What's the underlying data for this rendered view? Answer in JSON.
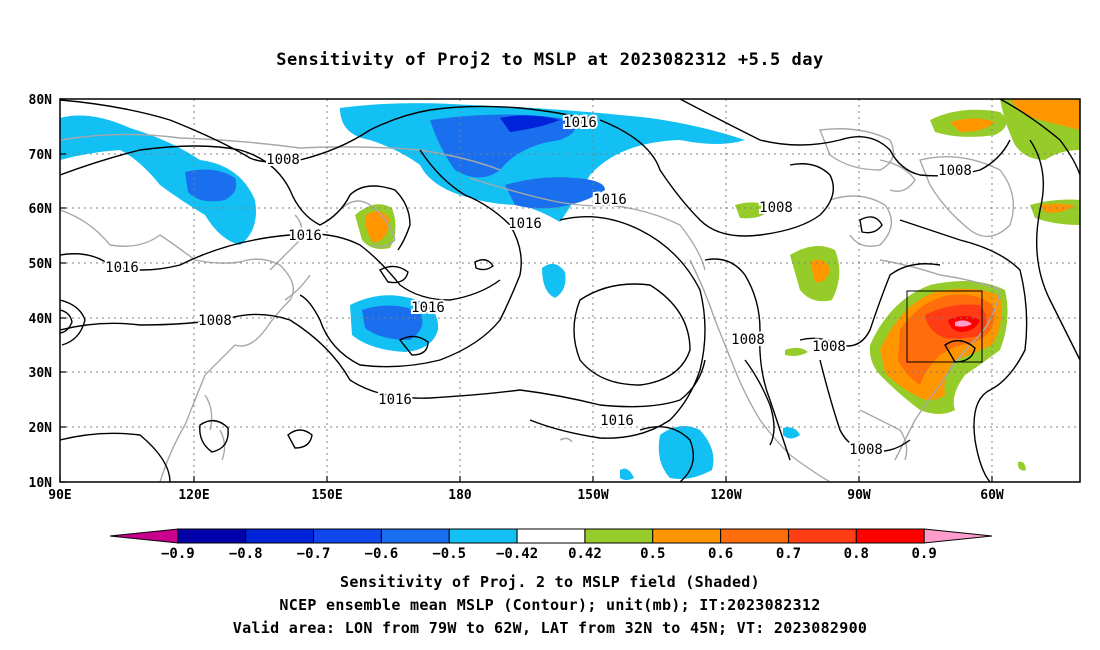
{
  "title": "Sensitivity of Proj2 to MSLP at 2023082312 +5.5 day",
  "lat_labels": [
    "80N",
    "70N",
    "60N",
    "50N",
    "40N",
    "30N",
    "20N",
    "10N"
  ],
  "lon_labels": [
    "90E",
    "120E",
    "150E",
    "180",
    "150W",
    "120W",
    "90W",
    "60W"
  ],
  "contour_labels": [
    "1016",
    "1008",
    "1016",
    "1016",
    "1016",
    "1016",
    "1008",
    "1016",
    "1016",
    "1008",
    "1008",
    "1008",
    "1008",
    "1016"
  ],
  "colorbar": {
    "ticks": [
      "−0.9",
      "−0.8",
      "−0.7",
      "−0.6",
      "−0.5",
      "−0.42",
      "0.42",
      "0.5",
      "0.6",
      "0.7",
      "0.8",
      "0.9"
    ],
    "colors": [
      "#c8008c",
      "#0000aa",
      "#0022d8",
      "#1046ee",
      "#1a6fee",
      "#12c0f4",
      "#ffffff",
      "#96cc2a",
      "#ff9600",
      "#ff6e0a",
      "#ff3c14",
      "#ff0000",
      "#ff9ccc"
    ]
  },
  "footer": {
    "line1": "Sensitivity of Proj. 2 to MSLP field (Shaded)",
    "line2": "NCEP ensemble mean MSLP (Contour); unit(mb); IT:2023082312",
    "line3": "Valid area: LON from 79W to 62W, LAT from 32N to 45N; VT: 2023082900"
  }
}
